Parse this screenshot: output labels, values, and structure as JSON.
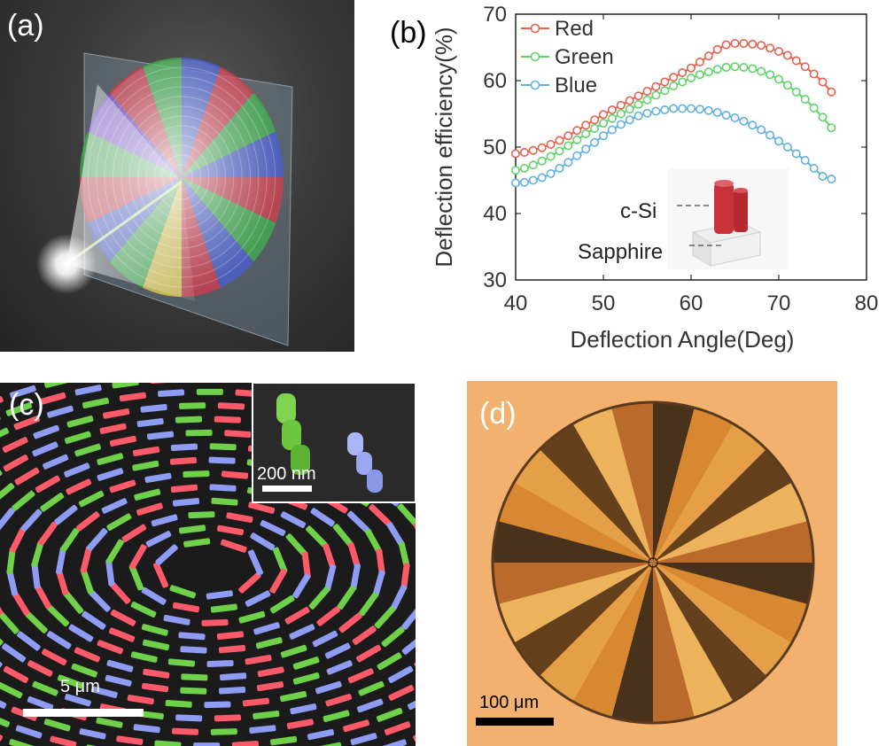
{
  "figure": {
    "panel_a": {
      "label": "(a)"
    },
    "panel_b": {
      "label": "(b)"
    },
    "panel_c": {
      "label": "(c)",
      "scale_bar": "5 μm",
      "inset_scale_bar": "200 nm"
    },
    "panel_d": {
      "label": "(d)",
      "scale_bar": "100 μm"
    }
  },
  "colors": {
    "red": "#e8604c",
    "green": "#5fd46a",
    "blue": "#5fb2dc",
    "sem_red": "#ff5a6a",
    "sem_green": "#6fd04a",
    "sem_blue": "#8f9cf4",
    "optical_bg": "#f2b16e"
  },
  "chart_data": {
    "type": "line",
    "xlabel": "Deflection Angle(Deg)",
    "ylabel": "Deflection efficiency(%)",
    "xlim": [
      40,
      80
    ],
    "ylim": [
      30,
      70
    ],
    "xticks": [
      40,
      50,
      60,
      70,
      80
    ],
    "yticks": [
      30,
      40,
      50,
      60,
      70
    ],
    "grid": false,
    "legend_position": "top-left",
    "marker": "open-circle",
    "x": [
      40,
      41,
      42,
      43,
      44,
      45,
      46,
      47,
      48,
      49,
      50,
      51,
      52,
      53,
      54,
      55,
      56,
      57,
      58,
      59,
      60,
      61,
      62,
      63,
      64,
      65,
      66,
      67,
      68,
      69,
      70,
      71,
      72,
      73,
      74,
      75,
      76
    ],
    "series": [
      {
        "name": "Red",
        "color": "#e8604c",
        "values": [
          49.0,
          49.2,
          49.5,
          49.9,
          50.4,
          51.0,
          51.7,
          52.5,
          53.3,
          54.1,
          54.9,
          55.6,
          56.3,
          57.0,
          57.7,
          58.4,
          59.1,
          59.8,
          60.5,
          61.2,
          61.9,
          62.8,
          63.7,
          64.7,
          65.4,
          65.6,
          65.6,
          65.5,
          65.3,
          64.9,
          64.4,
          63.8,
          63.0,
          62.1,
          61.0,
          59.8,
          58.3
        ]
      },
      {
        "name": "Green",
        "color": "#5fd46a",
        "values": [
          46.5,
          46.8,
          47.3,
          47.9,
          48.6,
          49.4,
          50.2,
          51.1,
          52.0,
          52.8,
          53.6,
          54.3,
          55.0,
          55.7,
          56.4,
          57.1,
          57.8,
          58.5,
          59.2,
          59.8,
          60.4,
          60.9,
          61.3,
          61.7,
          62.0,
          62.1,
          62.0,
          61.8,
          61.4,
          60.9,
          60.2,
          59.3,
          58.3,
          57.2,
          55.9,
          54.5,
          52.9
        ]
      },
      {
        "name": "Blue",
        "color": "#5fb2dc",
        "values": [
          44.6,
          44.7,
          45.0,
          45.4,
          46.0,
          46.8,
          47.7,
          48.7,
          49.7,
          50.7,
          51.7,
          52.6,
          53.4,
          54.1,
          54.7,
          55.1,
          55.4,
          55.6,
          55.8,
          55.8,
          55.8,
          55.7,
          55.5,
          55.2,
          54.8,
          54.4,
          53.9,
          53.3,
          52.6,
          51.8,
          50.9,
          50.0,
          49.0,
          48.0,
          46.8,
          45.6,
          45.2
        ]
      }
    ],
    "inset": {
      "labels": [
        "c-Si",
        "Sapphire"
      ]
    }
  }
}
